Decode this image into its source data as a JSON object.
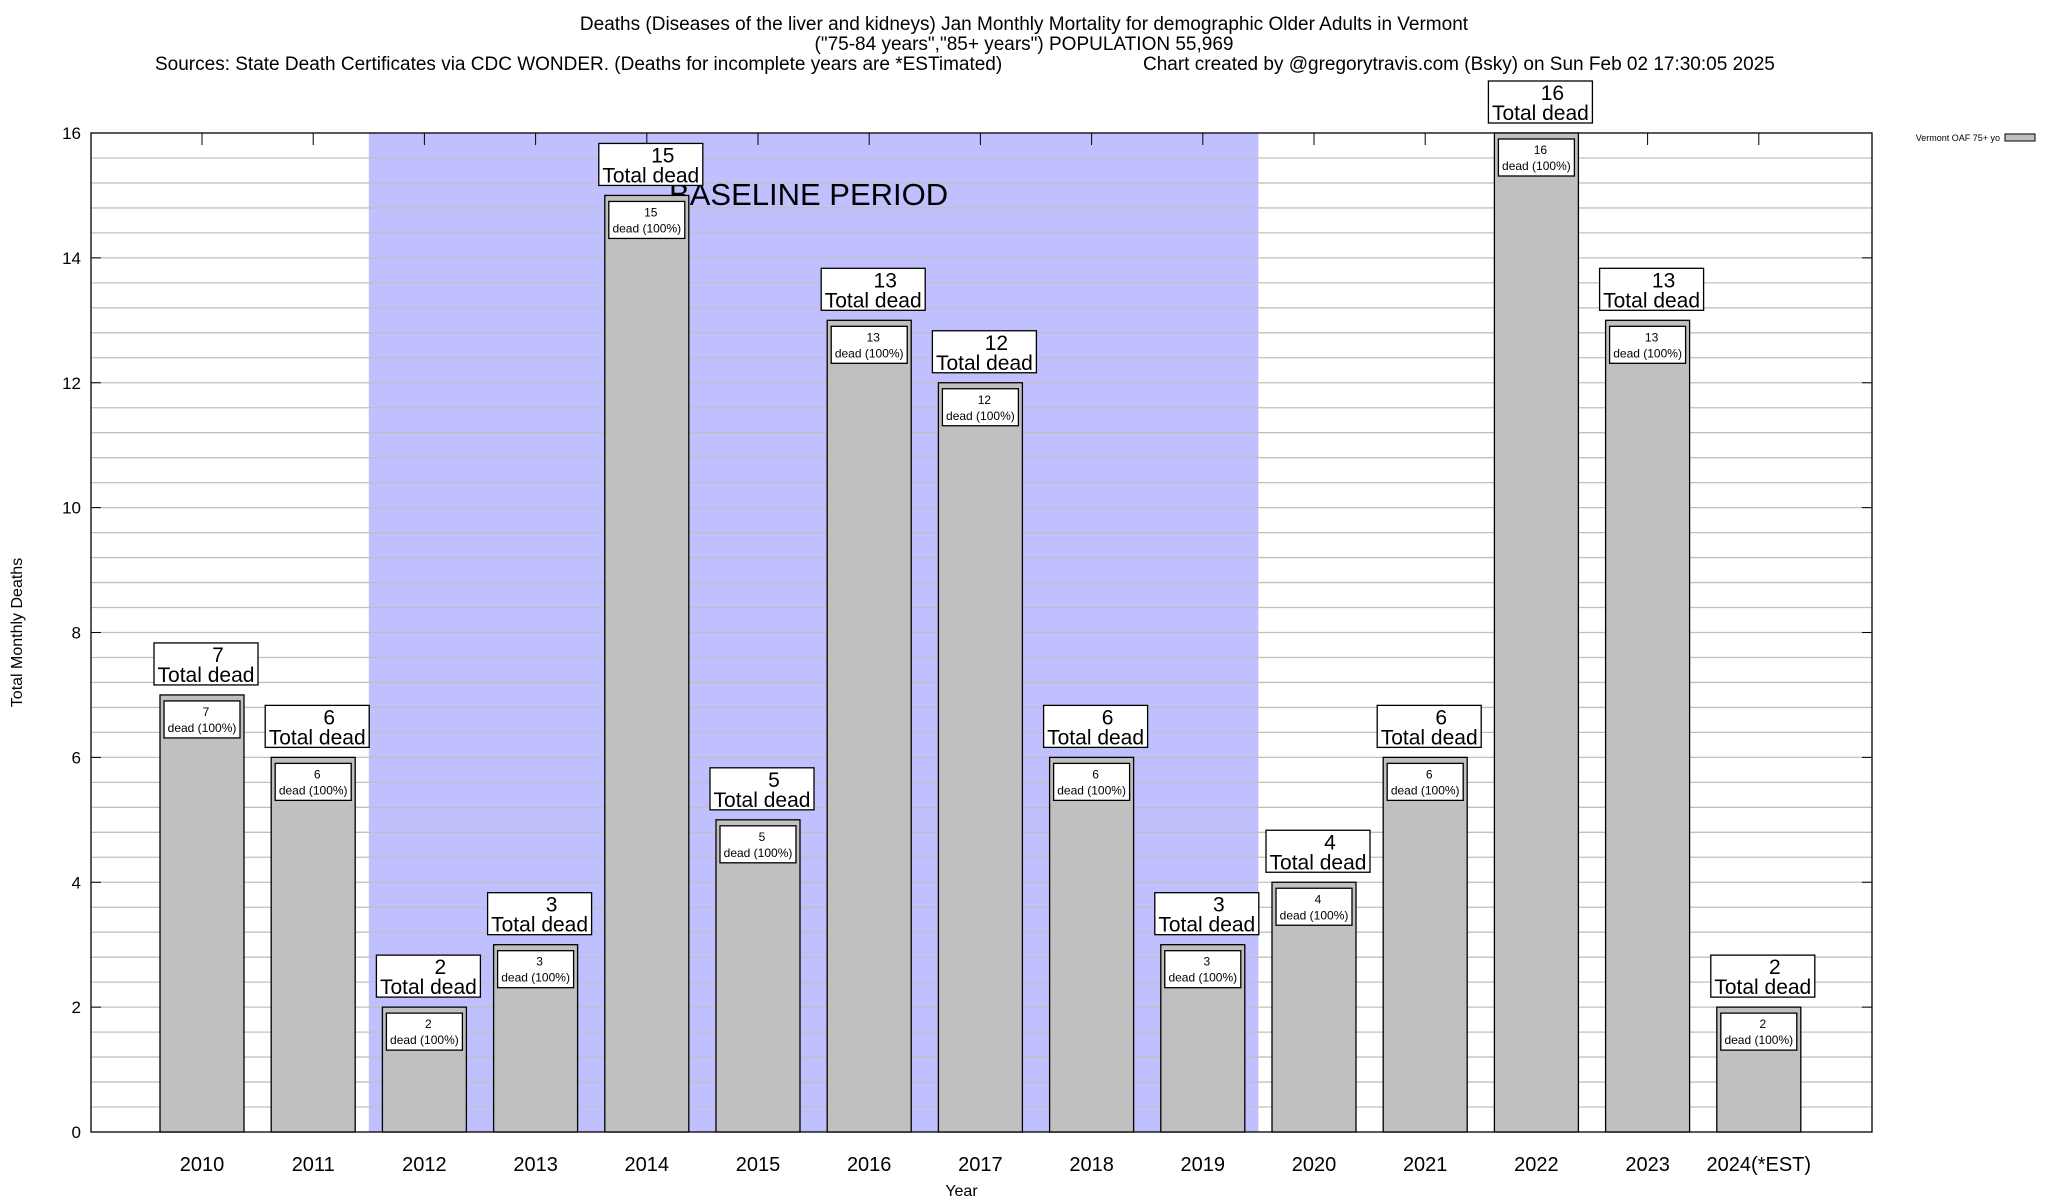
{
  "header": {
    "title_line1": "Deaths (Diseases of the liver and kidneys) Jan Monthly Mortality for demographic Older Adults in Vermont",
    "title_line2": "(\"75-84 years\",\"85+ years\") POPULATION 55,969",
    "sources": "Sources: State Death Certificates via CDC WONDER. (Deaths for incomplete years are *ESTimated)",
    "credit": "Chart created by @gregorytravis.com (Bsky) on Sun Feb 02 17:30:05 2025"
  },
  "chart_data": {
    "type": "bar",
    "xlabel": "Year",
    "ylabel": "Total Monthly Deaths",
    "ylim": [
      0,
      16
    ],
    "yticks": [
      0,
      2,
      4,
      6,
      8,
      10,
      12,
      14,
      16
    ],
    "grid": true,
    "legend_position": "top-right",
    "categories": [
      "2010",
      "2011",
      "2012",
      "2013",
      "2014",
      "2015",
      "2016",
      "2017",
      "2018",
      "2019",
      "2020",
      "2021",
      "2022",
      "2023",
      "2024(*EST)"
    ],
    "series": [
      {
        "name": "Vermont OAF 75+ yo",
        "color": "#c0c0c0",
        "values": [
          7,
          6,
          2,
          3,
          15,
          5,
          13,
          12,
          6,
          3,
          4,
          6,
          16,
          13,
          2
        ]
      }
    ],
    "total_label": "Total dead",
    "inner_label": "dead (100%)",
    "baseline": {
      "label": "BASELINE PERIOD",
      "from": "2012",
      "to": "2019",
      "color": "#c0c0ff"
    }
  }
}
